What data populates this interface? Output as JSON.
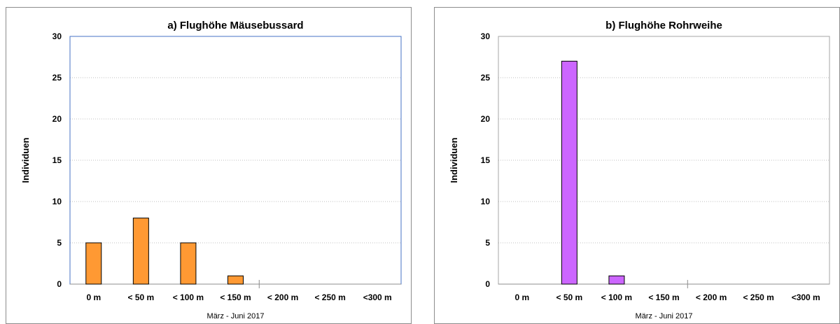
{
  "chart_data": [
    {
      "type": "bar",
      "title": "a) Flughöhe Mäusebussard",
      "xlabel": "März - Juni 2017",
      "ylabel": "Individuen",
      "categories": [
        "0 m",
        "< 50 m",
        "< 100 m",
        "< 150 m",
        "< 200 m",
        "< 250 m",
        "<300 m"
      ],
      "values": [
        5,
        8,
        5,
        1,
        0,
        0,
        0
      ],
      "ylim": [
        0,
        30
      ],
      "yticks": [
        0,
        5,
        10,
        15,
        20,
        25,
        30
      ],
      "grid": true,
      "bar_color": "#FF9933",
      "frame_color": "#4472C4"
    },
    {
      "type": "bar",
      "title": "b) Flughöhe Rohrweihe",
      "xlabel": "März - Juni 2017",
      "ylabel": "Individuen",
      "categories": [
        "0 m",
        "< 50 m",
        "< 100 m",
        "< 150 m",
        "< 200 m",
        "< 250 m",
        "<300 m"
      ],
      "values": [
        0,
        27,
        1,
        0,
        0,
        0,
        0
      ],
      "ylim": [
        0,
        30
      ],
      "yticks": [
        0,
        5,
        10,
        15,
        20,
        25,
        30
      ],
      "grid": true,
      "bar_color": "#CC66FF",
      "frame_color": "#A6A6A6"
    }
  ]
}
